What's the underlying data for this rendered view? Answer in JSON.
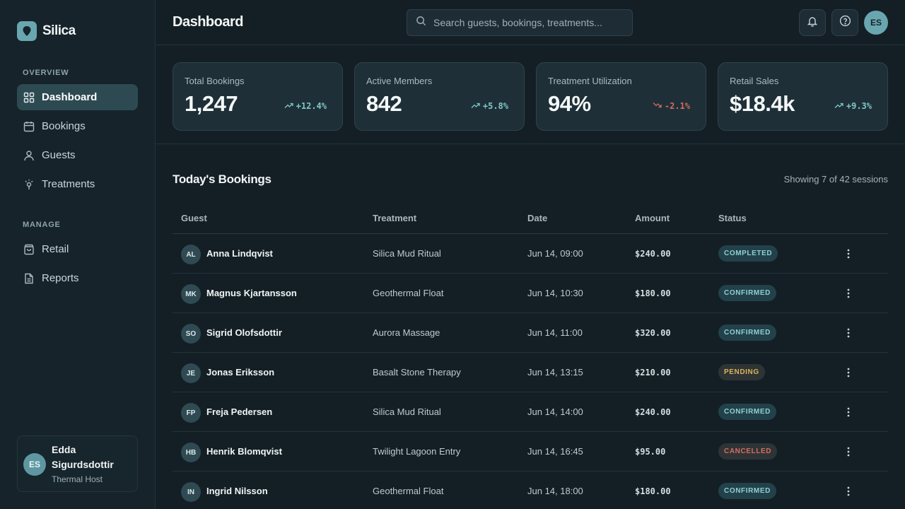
{
  "brand": {
    "name": "Silica"
  },
  "sidebar": {
    "overview_label": "OVERVIEW",
    "manage_label": "MANAGE",
    "overview_items": [
      {
        "label": "Dashboard",
        "icon": "grid-icon",
        "active": true
      },
      {
        "label": "Bookings",
        "icon": "calendar-icon"
      },
      {
        "label": "Guests",
        "icon": "user-icon"
      },
      {
        "label": "Treatments",
        "icon": "sparkle-icon"
      }
    ],
    "manage_items": [
      {
        "label": "Retail",
        "icon": "bag-icon"
      },
      {
        "label": "Reports",
        "icon": "document-icon"
      }
    ],
    "user": {
      "initials": "ES",
      "name": "Edda Sigurdsdottir",
      "role": "Thermal Host"
    }
  },
  "header": {
    "title": "Dashboard",
    "search_placeholder": "Search guests, bookings, treatments...",
    "avatar_initials": "ES"
  },
  "stats": [
    {
      "label": "Total Bookings",
      "value": "1,247",
      "delta": "+12.4%",
      "trend": "up"
    },
    {
      "label": "Active Members",
      "value": "842",
      "delta": "+5.8%",
      "trend": "up"
    },
    {
      "label": "Treatment Utilization",
      "value": "94%",
      "delta": "-2.1%",
      "trend": "down"
    },
    {
      "label": "Retail Sales",
      "value": "$18.4k",
      "delta": "+9.3%",
      "trend": "up"
    }
  ],
  "bookings": {
    "title": "Today's Bookings",
    "showing": "Showing 7 of 42 sessions",
    "columns": {
      "guest": "Guest",
      "treatment": "Treatment",
      "date": "Date",
      "amount": "Amount",
      "status": "Status"
    },
    "rows": [
      {
        "initials": "AL",
        "guest": "Anna Lindqvist",
        "treatment": "Silica Mud Ritual",
        "date": "Jun 14, 09:00",
        "amount": "$240.00",
        "status": "COMPLETED",
        "status_kind": "completed"
      },
      {
        "initials": "MK",
        "guest": "Magnus Kjartansson",
        "treatment": "Geothermal Float",
        "date": "Jun 14, 10:30",
        "amount": "$180.00",
        "status": "CONFIRMED",
        "status_kind": "confirmed"
      },
      {
        "initials": "SO",
        "guest": "Sigrid Olofsdottir",
        "treatment": "Aurora Massage",
        "date": "Jun 14, 11:00",
        "amount": "$320.00",
        "status": "CONFIRMED",
        "status_kind": "confirmed"
      },
      {
        "initials": "JE",
        "guest": "Jonas Eriksson",
        "treatment": "Basalt Stone Therapy",
        "date": "Jun 14, 13:15",
        "amount": "$210.00",
        "status": "PENDING",
        "status_kind": "pending"
      },
      {
        "initials": "FP",
        "guest": "Freja Pedersen",
        "treatment": "Silica Mud Ritual",
        "date": "Jun 14, 14:00",
        "amount": "$240.00",
        "status": "CONFIRMED",
        "status_kind": "confirmed"
      },
      {
        "initials": "HB",
        "guest": "Henrik Blomqvist",
        "treatment": "Twilight Lagoon Entry",
        "date": "Jun 14, 16:45",
        "amount": "$95.00",
        "status": "CANCELLED",
        "status_kind": "cancelled"
      },
      {
        "initials": "IN",
        "guest": "Ingrid Nilsson",
        "treatment": "Geothermal Float",
        "date": "Jun 14, 18:00",
        "amount": "$180.00",
        "status": "CONFIRMED",
        "status_kind": "confirmed"
      }
    ]
  },
  "colors": {
    "accent": "#6aa6b0",
    "up": "#7ec8c8",
    "down": "#d26b60",
    "pending": "#d8b45e"
  }
}
